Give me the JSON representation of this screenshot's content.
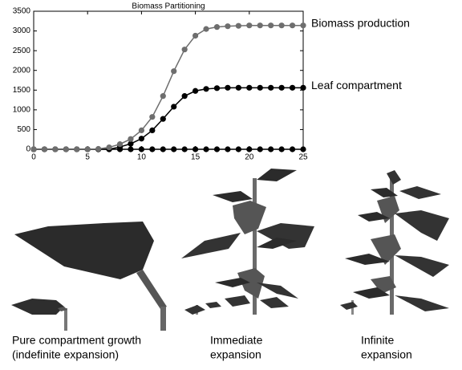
{
  "chart_data": {
    "type": "line",
    "title": "Biomass Partitioning",
    "x": [
      0,
      1,
      2,
      3,
      4,
      5,
      6,
      7,
      8,
      9,
      10,
      11,
      12,
      13,
      14,
      15,
      16,
      17,
      18,
      19,
      20,
      21,
      22,
      23,
      24,
      25
    ],
    "series": [
      {
        "name": "Biomass production",
        "color": "#6e6e6e",
        "values": [
          0,
          0,
          0,
          0,
          0,
          0,
          10,
          50,
          130,
          260,
          480,
          820,
          1350,
          1980,
          2530,
          2880,
          3050,
          3100,
          3120,
          3130,
          3140,
          3140,
          3140,
          3140,
          3140,
          3140
        ]
      },
      {
        "name": "Leaf compartment",
        "color": "#000000",
        "values": [
          0,
          0,
          0,
          0,
          0,
          0,
          0,
          0,
          60,
          140,
          270,
          480,
          770,
          1080,
          1350,
          1480,
          1530,
          1550,
          1560,
          1560,
          1560,
          1560,
          1560,
          1560,
          1560,
          1560
        ]
      },
      {
        "color": "#000000",
        "values": [
          0,
          0,
          0,
          0,
          0,
          0,
          0,
          0,
          0,
          0,
          0,
          0,
          0,
          0,
          0,
          0,
          0,
          0,
          0,
          0,
          0,
          0,
          0,
          0,
          0,
          0
        ]
      }
    ],
    "xlim": [
      0,
      25
    ],
    "xticks": [
      0,
      5,
      10,
      15,
      20,
      25
    ],
    "ylim": [
      0,
      3500
    ],
    "yticks": [
      0,
      500,
      1000,
      1500,
      2000,
      2500,
      3000,
      3500
    ]
  },
  "captions": [
    [
      "Pure compartment growth",
      "(indefinite expansion)"
    ],
    [
      "Immediate",
      "expansion"
    ],
    [
      "Infinite",
      "expansion"
    ]
  ]
}
